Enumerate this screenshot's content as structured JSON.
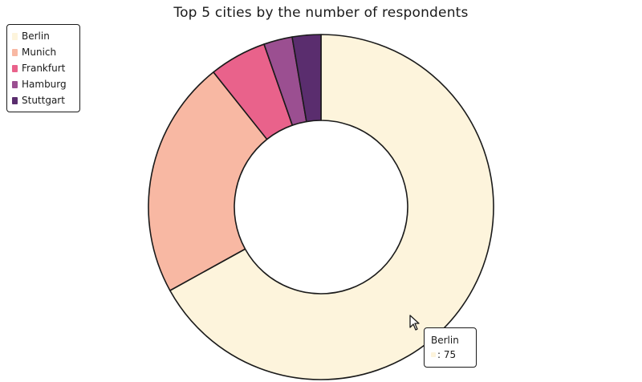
{
  "chart_data": {
    "type": "pie",
    "title": "Top 5 cities by the number of respondents",
    "donut": true,
    "legend_position": "top-left",
    "categories": [
      "Berlin",
      "Munich",
      "Frankfurt",
      "Hamburg",
      "Stuttgart"
    ],
    "values": [
      75,
      25,
      6,
      3,
      3
    ],
    "colors": [
      "#fdf4dc",
      "#f8b8a3",
      "#e9628b",
      "#9b4f91",
      "#5a2d6e"
    ]
  },
  "tooltip": {
    "category": "Berlin",
    "value_text": ": 75",
    "color": "#fdf4dc"
  },
  "colors": {
    "stroke": "#1a1a1a",
    "background": "#ffffff"
  }
}
